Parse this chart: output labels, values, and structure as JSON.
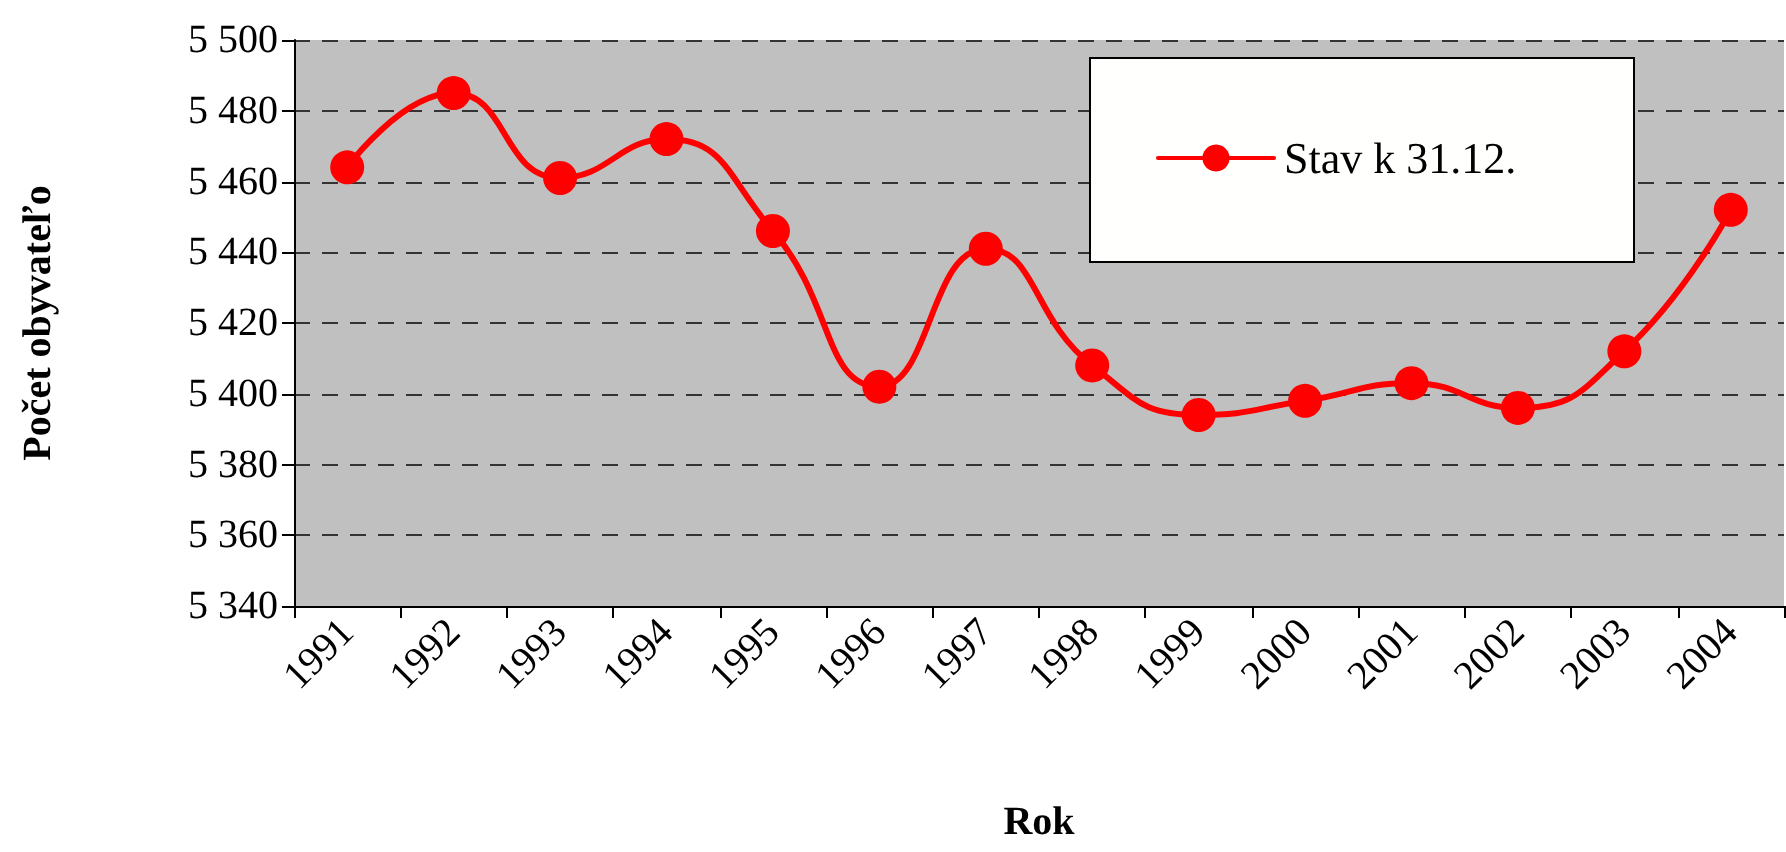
{
  "chart_data": {
    "type": "line",
    "xlabel": "Rok",
    "ylabel": "Počet obyvateľo",
    "categories": [
      "1991",
      "1992",
      "1993",
      "1994",
      "1995",
      "1996",
      "1997",
      "1998",
      "1999",
      "2000",
      "2001",
      "2002",
      "2003",
      "2004"
    ],
    "series": [
      {
        "name": "Stav k 31.12.",
        "color": "#ff0000",
        "values": [
          5464,
          5485,
          5461,
          5472,
          5446,
          5402,
          5441,
          5408,
          5394,
          5398,
          5403,
          5396,
          5412,
          5452
        ]
      }
    ],
    "ylim": [
      5340,
      5500
    ],
    "yticks": [
      {
        "value": 5340,
        "label": "5 340"
      },
      {
        "value": 5360,
        "label": "5 360"
      },
      {
        "value": 5380,
        "label": "5 380"
      },
      {
        "value": 5400,
        "label": "5 400"
      },
      {
        "value": 5420,
        "label": "5 420"
      },
      {
        "value": 5440,
        "label": "5 440"
      },
      {
        "value": 5460,
        "label": "5 460"
      },
      {
        "value": 5480,
        "label": "5 480"
      },
      {
        "value": 5500,
        "label": "5 500"
      }
    ],
    "grid": "y",
    "legend": "top right",
    "marker": "circle",
    "line_style": "solid"
  }
}
